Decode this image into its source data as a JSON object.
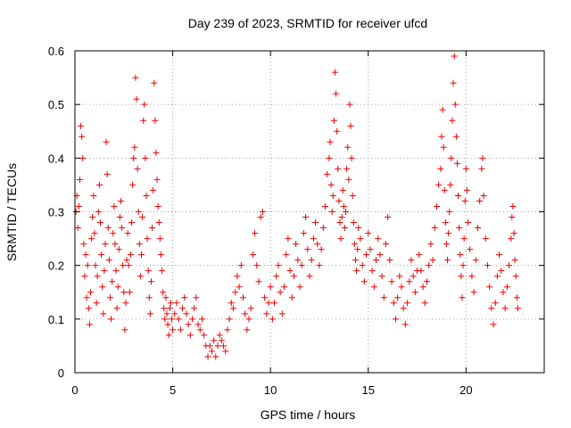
{
  "chart_data": {
    "type": "scatter",
    "title": "Day 239 of 2023, SRMTID for receiver ufcd",
    "xlabel": "GPS time / hours",
    "ylabel": "SRMTID / TECUs",
    "xlim": [
      0,
      24
    ],
    "ylim": [
      0,
      0.6
    ],
    "xticks": [
      0,
      5,
      10,
      15,
      20
    ],
    "xtick_labels": [
      "0",
      "5",
      "10",
      "15",
      "20"
    ],
    "yticks": [
      0,
      0.1,
      0.2,
      0.3,
      0.4,
      0.5,
      0.6
    ],
    "ytick_labels": [
      "0",
      "0.1",
      "0.2",
      "0.3",
      "0.4",
      "0.5",
      "0.6"
    ],
    "grid": true,
    "marker": "+",
    "marker_color": "#ee0000",
    "series": [
      {
        "name": "SRMTID",
        "points": [
          [
            0.05,
            0.3
          ],
          [
            0.1,
            0.33
          ],
          [
            0.15,
            0.27
          ],
          [
            0.2,
            0.31
          ],
          [
            0.25,
            0.36
          ],
          [
            0.3,
            0.46
          ],
          [
            0.35,
            0.44
          ],
          [
            0.4,
            0.4
          ],
          [
            0.45,
            0.24
          ],
          [
            0.5,
            0.18
          ],
          [
            0.55,
            0.22
          ],
          [
            0.6,
            0.14
          ],
          [
            0.65,
            0.2
          ],
          [
            0.7,
            0.12
          ],
          [
            0.75,
            0.09
          ],
          [
            0.8,
            0.15
          ],
          [
            0.85,
            0.25
          ],
          [
            0.9,
            0.29
          ],
          [
            0.95,
            0.33
          ],
          [
            1.0,
            0.26
          ],
          [
            1.05,
            0.2
          ],
          [
            1.1,
            0.13
          ],
          [
            1.15,
            0.18
          ],
          [
            1.2,
            0.3
          ],
          [
            1.25,
            0.35
          ],
          [
            1.3,
            0.28
          ],
          [
            1.35,
            0.22
          ],
          [
            1.4,
            0.16
          ],
          [
            1.45,
            0.11
          ],
          [
            1.5,
            0.19
          ],
          [
            1.55,
            0.24
          ],
          [
            1.6,
            0.43
          ],
          [
            1.65,
            0.37
          ],
          [
            1.7,
            0.27
          ],
          [
            1.75,
            0.21
          ],
          [
            1.8,
            0.14
          ],
          [
            1.85,
            0.1
          ],
          [
            1.9,
            0.17
          ],
          [
            1.95,
            0.26
          ],
          [
            2.0,
            0.31
          ],
          [
            2.05,
            0.24
          ],
          [
            2.1,
            0.19
          ],
          [
            2.15,
            0.12
          ],
          [
            2.2,
            0.16
          ],
          [
            2.25,
            0.23
          ],
          [
            2.3,
            0.29
          ],
          [
            2.35,
            0.32
          ],
          [
            2.4,
            0.27
          ],
          [
            2.45,
            0.2
          ],
          [
            2.5,
            0.15
          ],
          [
            2.55,
            0.08
          ],
          [
            2.6,
            0.13
          ],
          [
            2.65,
            0.21
          ],
          [
            2.7,
            0.26
          ],
          [
            2.75,
            0.2
          ],
          [
            2.8,
            0.15
          ],
          [
            2.85,
            0.22
          ],
          [
            2.9,
            0.28
          ],
          [
            2.95,
            0.35
          ],
          [
            3.0,
            0.4
          ],
          [
            3.05,
            0.42
          ],
          [
            3.1,
            0.55
          ],
          [
            3.15,
            0.51
          ],
          [
            3.2,
            0.38
          ],
          [
            3.25,
            0.3
          ],
          [
            3.3,
            0.24
          ],
          [
            3.35,
            0.18
          ],
          [
            3.4,
            0.22
          ],
          [
            3.45,
            0.29
          ],
          [
            3.5,
            0.47
          ],
          [
            3.55,
            0.5
          ],
          [
            3.6,
            0.4
          ],
          [
            3.65,
            0.33
          ],
          [
            3.7,
            0.25
          ],
          [
            3.75,
            0.19
          ],
          [
            3.8,
            0.14
          ],
          [
            3.85,
            0.11
          ],
          [
            3.9,
            0.17
          ],
          [
            3.95,
            0.27
          ],
          [
            4.0,
            0.34
          ],
          [
            4.05,
            0.54
          ],
          [
            4.1,
            0.47
          ],
          [
            4.15,
            0.41
          ],
          [
            4.2,
            0.36
          ],
          [
            4.25,
            0.31
          ],
          [
            4.3,
            0.28
          ],
          [
            4.35,
            0.25
          ],
          [
            4.4,
            0.22
          ],
          [
            4.45,
            0.19
          ],
          [
            4.5,
            0.15
          ],
          [
            4.55,
            0.12
          ],
          [
            4.6,
            0.1
          ],
          [
            4.65,
            0.14
          ],
          [
            4.7,
            0.11
          ],
          [
            4.75,
            0.09
          ],
          [
            4.8,
            0.07
          ],
          [
            4.85,
            0.12
          ],
          [
            4.9,
            0.13
          ],
          [
            4.95,
            0.1
          ],
          [
            5.0,
            0.08
          ],
          [
            5.1,
            0.11
          ],
          [
            5.2,
            0.13
          ],
          [
            5.3,
            0.1
          ],
          [
            5.4,
            0.08
          ],
          [
            5.5,
            0.12
          ],
          [
            5.6,
            0.14
          ],
          [
            5.7,
            0.11
          ],
          [
            5.8,
            0.09
          ],
          [
            5.9,
            0.07
          ],
          [
            6.0,
            0.1
          ],
          [
            6.1,
            0.12
          ],
          [
            6.2,
            0.14
          ],
          [
            6.3,
            0.09
          ],
          [
            6.4,
            0.08
          ],
          [
            6.5,
            0.1
          ],
          [
            6.6,
            0.07
          ],
          [
            6.7,
            0.05
          ],
          [
            6.8,
            0.03
          ],
          [
            6.9,
            0.05
          ],
          [
            7.0,
            0.04
          ],
          [
            7.1,
            0.06
          ],
          [
            7.2,
            0.03
          ],
          [
            7.3,
            0.05
          ],
          [
            7.4,
            0.07
          ],
          [
            7.5,
            0.06
          ],
          [
            7.6,
            0.05
          ],
          [
            7.7,
            0.04
          ],
          [
            7.8,
            0.08
          ],
          [
            7.9,
            0.1
          ],
          [
            8.0,
            0.13
          ],
          [
            8.1,
            0.12
          ],
          [
            8.2,
            0.15
          ],
          [
            8.3,
            0.18
          ],
          [
            8.4,
            0.16
          ],
          [
            8.5,
            0.2
          ],
          [
            8.6,
            0.14
          ],
          [
            8.7,
            0.11
          ],
          [
            8.8,
            0.08
          ],
          [
            8.9,
            0.1
          ],
          [
            9.0,
            0.12
          ],
          [
            9.1,
            0.22
          ],
          [
            9.2,
            0.26
          ],
          [
            9.3,
            0.2
          ],
          [
            9.4,
            0.17
          ],
          [
            9.5,
            0.29
          ],
          [
            9.6,
            0.3
          ],
          [
            9.7,
            0.14
          ],
          [
            9.8,
            0.11
          ],
          [
            9.9,
            0.13
          ],
          [
            10.0,
            0.16
          ],
          [
            10.1,
            0.1
          ],
          [
            10.2,
            0.13
          ],
          [
            10.3,
            0.18
          ],
          [
            10.4,
            0.2
          ],
          [
            10.5,
            0.15
          ],
          [
            10.6,
            0.11
          ],
          [
            10.7,
            0.16
          ],
          [
            10.8,
            0.22
          ],
          [
            10.9,
            0.25
          ],
          [
            11.0,
            0.19
          ],
          [
            11.1,
            0.14
          ],
          [
            11.2,
            0.18
          ],
          [
            11.3,
            0.24
          ],
          [
            11.4,
            0.21
          ],
          [
            11.5,
            0.16
          ],
          [
            11.6,
            0.2
          ],
          [
            11.7,
            0.26
          ],
          [
            11.8,
            0.29
          ],
          [
            11.9,
            0.23
          ],
          [
            12.0,
            0.18
          ],
          [
            12.1,
            0.21
          ],
          [
            12.2,
            0.25
          ],
          [
            12.3,
            0.28
          ],
          [
            12.4,
            0.24
          ],
          [
            12.5,
            0.2
          ],
          [
            12.6,
            0.23
          ],
          [
            12.7,
            0.27
          ],
          [
            12.8,
            0.31
          ],
          [
            12.9,
            0.37
          ],
          [
            13.0,
            0.4
          ],
          [
            13.05,
            0.43
          ],
          [
            13.1,
            0.35
          ],
          [
            13.15,
            0.3
          ],
          [
            13.2,
            0.33
          ],
          [
            13.25,
            0.47
          ],
          [
            13.3,
            0.56
          ],
          [
            13.35,
            0.52
          ],
          [
            13.4,
            0.45
          ],
          [
            13.45,
            0.38
          ],
          [
            13.5,
            0.32
          ],
          [
            13.55,
            0.28
          ],
          [
            13.6,
            0.25
          ],
          [
            13.65,
            0.29
          ],
          [
            13.7,
            0.34
          ],
          [
            13.75,
            0.31
          ],
          [
            13.8,
            0.27
          ],
          [
            13.85,
            0.3
          ],
          [
            13.9,
            0.38
          ],
          [
            13.95,
            0.42
          ],
          [
            14.0,
            0.36
          ],
          [
            14.05,
            0.5
          ],
          [
            14.1,
            0.46
          ],
          [
            14.15,
            0.4
          ],
          [
            14.2,
            0.33
          ],
          [
            14.25,
            0.28
          ],
          [
            14.3,
            0.24
          ],
          [
            14.35,
            0.21
          ],
          [
            14.4,
            0.19
          ],
          [
            14.45,
            0.23
          ],
          [
            14.5,
            0.27
          ],
          [
            14.6,
            0.25
          ],
          [
            14.7,
            0.2
          ],
          [
            14.8,
            0.17
          ],
          [
            14.9,
            0.22
          ],
          [
            15.0,
            0.26
          ],
          [
            15.1,
            0.23
          ],
          [
            15.2,
            0.19
          ],
          [
            15.3,
            0.16
          ],
          [
            15.4,
            0.21
          ],
          [
            15.5,
            0.25
          ],
          [
            15.6,
            0.22
          ],
          [
            15.7,
            0.18
          ],
          [
            15.8,
            0.14
          ],
          [
            15.9,
            0.24
          ],
          [
            16.0,
            0.29
          ],
          [
            16.1,
            0.21
          ],
          [
            16.2,
            0.17
          ],
          [
            16.3,
            0.13
          ],
          [
            16.4,
            0.1
          ],
          [
            16.5,
            0.14
          ],
          [
            16.6,
            0.18
          ],
          [
            16.7,
            0.16
          ],
          [
            16.8,
            0.12
          ],
          [
            16.9,
            0.09
          ],
          [
            17.0,
            0.13
          ],
          [
            17.1,
            0.17
          ],
          [
            17.2,
            0.21
          ],
          [
            17.3,
            0.18
          ],
          [
            17.4,
            0.15
          ],
          [
            17.5,
            0.19
          ],
          [
            17.6,
            0.22
          ],
          [
            17.7,
            0.19
          ],
          [
            17.8,
            0.16
          ],
          [
            17.9,
            0.13
          ],
          [
            18.0,
            0.17
          ],
          [
            18.1,
            0.2
          ],
          [
            18.2,
            0.24
          ],
          [
            18.3,
            0.21
          ],
          [
            18.4,
            0.27
          ],
          [
            18.5,
            0.31
          ],
          [
            18.6,
            0.35
          ],
          [
            18.7,
            0.38
          ],
          [
            18.75,
            0.44
          ],
          [
            18.8,
            0.49
          ],
          [
            18.85,
            0.42
          ],
          [
            18.9,
            0.34
          ],
          [
            18.95,
            0.28
          ],
          [
            19.0,
            0.24
          ],
          [
            19.05,
            0.21
          ],
          [
            19.1,
            0.26
          ],
          [
            19.15,
            0.3
          ],
          [
            19.2,
            0.35
          ],
          [
            19.25,
            0.4
          ],
          [
            19.3,
            0.47
          ],
          [
            19.35,
            0.54
          ],
          [
            19.4,
            0.59
          ],
          [
            19.45,
            0.5
          ],
          [
            19.5,
            0.44
          ],
          [
            19.55,
            0.39
          ],
          [
            19.6,
            0.33
          ],
          [
            19.65,
            0.27
          ],
          [
            19.7,
            0.22
          ],
          [
            19.75,
            0.18
          ],
          [
            19.8,
            0.14
          ],
          [
            19.85,
            0.2
          ],
          [
            19.9,
            0.25
          ],
          [
            19.95,
            0.32
          ],
          [
            20.0,
            0.38
          ],
          [
            20.05,
            0.34
          ],
          [
            20.1,
            0.28
          ],
          [
            20.2,
            0.23
          ],
          [
            20.3,
            0.18
          ],
          [
            20.4,
            0.15
          ],
          [
            20.5,
            0.21
          ],
          [
            20.6,
            0.27
          ],
          [
            20.7,
            0.32
          ],
          [
            20.8,
            0.38
          ],
          [
            20.85,
            0.4
          ],
          [
            20.9,
            0.33
          ],
          [
            21.0,
            0.25
          ],
          [
            21.1,
            0.2
          ],
          [
            21.2,
            0.16
          ],
          [
            21.3,
            0.12
          ],
          [
            21.4,
            0.09
          ],
          [
            21.5,
            0.13
          ],
          [
            21.6,
            0.18
          ],
          [
            21.7,
            0.22
          ],
          [
            21.8,
            0.19
          ],
          [
            21.9,
            0.15
          ],
          [
            22.0,
            0.12
          ],
          [
            22.1,
            0.16
          ],
          [
            22.2,
            0.2
          ],
          [
            22.3,
            0.25
          ],
          [
            22.35,
            0.29
          ],
          [
            22.4,
            0.31
          ],
          [
            22.45,
            0.26
          ],
          [
            22.5,
            0.21
          ],
          [
            22.55,
            0.18
          ],
          [
            22.6,
            0.14
          ],
          [
            22.65,
            0.12
          ]
        ]
      }
    ]
  }
}
